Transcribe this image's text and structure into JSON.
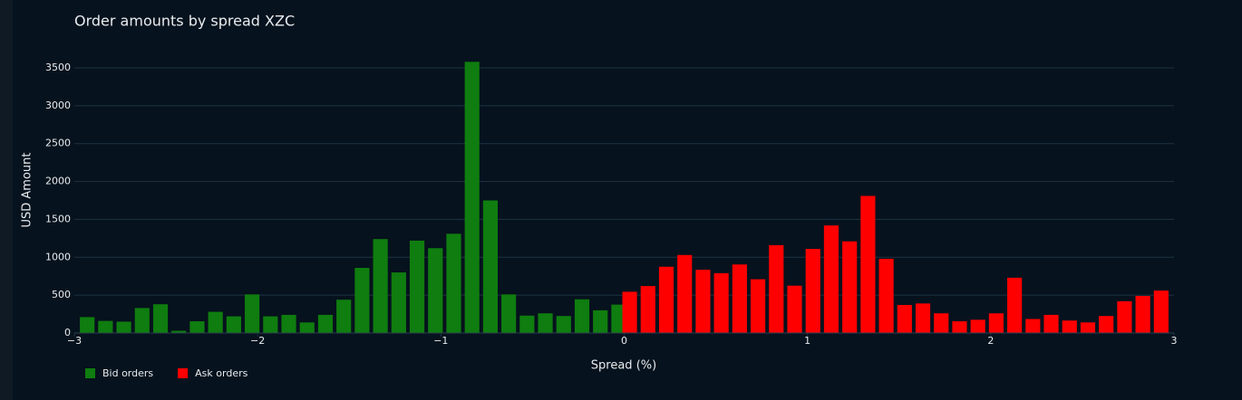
{
  "chart_data": {
    "type": "bar",
    "title": "Order amounts by spread XZC",
    "xlabel": "Spread (%)",
    "ylabel": "USD Amount",
    "xlim": [
      -3,
      3
    ],
    "xticks": [
      {
        "value": -3,
        "label": "−3"
      },
      {
        "value": -2,
        "label": "−2"
      },
      {
        "value": -1,
        "label": "−1"
      },
      0,
      1,
      2,
      3
    ],
    "ylim": [
      0,
      3700
    ],
    "yticks": [
      0,
      500,
      1000,
      1500,
      2000,
      2500,
      3000,
      3500
    ],
    "grid": true,
    "legend": "bottom-left",
    "series": [
      {
        "name": "Bid orders",
        "color": "#0f7d0f",
        "x": [
          -2.93,
          -2.83,
          -2.73,
          -2.63,
          -2.53,
          -2.43,
          -2.33,
          -2.23,
          -2.13,
          -2.03,
          -1.93,
          -1.83,
          -1.73,
          -1.63,
          -1.53,
          -1.43,
          -1.33,
          -1.23,
          -1.13,
          -1.03,
          -0.93,
          -0.83,
          -0.73,
          -0.63,
          -0.53,
          -0.43,
          -0.33,
          -0.23,
          -0.13,
          -0.03
        ],
        "values": [
          210,
          160,
          150,
          330,
          380,
          30,
          155,
          280,
          220,
          510,
          220,
          240,
          140,
          240,
          440,
          860,
          1240,
          800,
          1220,
          1120,
          1310,
          3580,
          1750,
          510,
          230,
          260,
          225,
          445,
          300,
          375
        ]
      },
      {
        "name": "Ask orders",
        "color": "#ff0000",
        "x": [
          0.03,
          0.13,
          0.23,
          0.33,
          0.43,
          0.53,
          0.63,
          0.73,
          0.83,
          0.93,
          1.03,
          1.13,
          1.23,
          1.33,
          1.43,
          1.53,
          1.63,
          1.73,
          1.83,
          1.93,
          2.03,
          2.13,
          2.23,
          2.33,
          2.43,
          2.53,
          2.63,
          2.73,
          2.83,
          2.93
        ],
        "values": [
          545,
          620,
          875,
          1030,
          835,
          790,
          905,
          710,
          1160,
          625,
          1110,
          1420,
          1210,
          1810,
          980,
          370,
          390,
          260,
          155,
          175,
          260,
          730,
          185,
          240,
          165,
          140,
          225,
          420,
          490,
          560
        ]
      }
    ]
  }
}
